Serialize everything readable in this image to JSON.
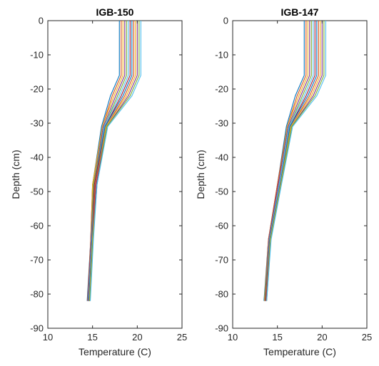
{
  "chart_data": [
    {
      "type": "line",
      "title": "IGB-150",
      "xlabel": "Temperature (C)",
      "ylabel": "Depth (cm)",
      "xlim": [
        10,
        25
      ],
      "ylim": [
        -90,
        0
      ],
      "xticks": [
        "10",
        "15",
        "20",
        "25"
      ],
      "yticks": [
        "0",
        "-10",
        "-20",
        "-30",
        "-40",
        "-50",
        "-60",
        "-70",
        "-80",
        "-90"
      ],
      "depths": [
        0,
        -16,
        -22,
        -31,
        -48,
        -64,
        -82
      ],
      "series": [
        {
          "temps": [
            18.0,
            18.0,
            17.0,
            16.0,
            15.0,
            14.8,
            14.4
          ]
        },
        {
          "temps": [
            18.2,
            18.2,
            17.2,
            16.1,
            15.0,
            14.8,
            14.45
          ]
        },
        {
          "temps": [
            18.4,
            18.4,
            17.4,
            16.1,
            15.0,
            14.85,
            14.5
          ]
        },
        {
          "temps": [
            18.6,
            18.6,
            17.6,
            16.2,
            15.1,
            14.85,
            14.5
          ]
        },
        {
          "temps": [
            18.8,
            18.8,
            17.8,
            16.3,
            15.1,
            14.9,
            14.55
          ]
        },
        {
          "temps": [
            19.0,
            19.0,
            18.0,
            16.3,
            15.2,
            14.9,
            14.55
          ]
        },
        {
          "temps": [
            19.2,
            19.2,
            18.2,
            16.4,
            15.2,
            14.95,
            14.6
          ]
        },
        {
          "temps": [
            19.4,
            19.4,
            18.4,
            16.4,
            15.3,
            14.95,
            14.6
          ]
        },
        {
          "temps": [
            19.6,
            19.6,
            18.6,
            16.5,
            15.3,
            15.0,
            14.65
          ]
        },
        {
          "temps": [
            19.8,
            19.8,
            18.8,
            16.5,
            15.4,
            15.0,
            14.65
          ]
        },
        {
          "temps": [
            20.0,
            20.0,
            19.0,
            16.6,
            15.4,
            15.05,
            14.7
          ]
        },
        {
          "temps": [
            20.2,
            20.2,
            19.2,
            16.6,
            15.5,
            15.05,
            14.7
          ]
        },
        {
          "temps": [
            20.4,
            20.4,
            19.4,
            16.7,
            15.5,
            15.1,
            14.75
          ]
        }
      ]
    },
    {
      "type": "line",
      "title": "IGB-147",
      "xlabel": "Temperature (C)",
      "ylabel": "Depth (cm)",
      "xlim": [
        10,
        25
      ],
      "ylim": [
        -90,
        0
      ],
      "xticks": [
        "10",
        "15",
        "20",
        "25"
      ],
      "yticks": [
        "0",
        "-10",
        "-20",
        "-30",
        "-40",
        "-50",
        "-60",
        "-70",
        "-80",
        "-90"
      ],
      "depths": [
        0,
        -16,
        -22,
        -31,
        -48,
        -64,
        -82
      ],
      "series": [
        {
          "temps": [
            18.0,
            18.0,
            17.0,
            16.0,
            15.0,
            14.0,
            13.5
          ]
        },
        {
          "temps": [
            18.2,
            18.2,
            17.2,
            16.1,
            15.0,
            14.0,
            13.55
          ]
        },
        {
          "temps": [
            18.4,
            18.4,
            17.4,
            16.1,
            15.1,
            14.05,
            13.55
          ]
        },
        {
          "temps": [
            18.6,
            18.6,
            17.6,
            16.2,
            15.1,
            14.05,
            13.6
          ]
        },
        {
          "temps": [
            18.8,
            18.8,
            17.8,
            16.3,
            15.2,
            14.1,
            13.6
          ]
        },
        {
          "temps": [
            19.0,
            19.0,
            18.0,
            16.3,
            15.2,
            14.1,
            13.65
          ]
        },
        {
          "temps": [
            19.2,
            19.2,
            18.2,
            16.4,
            15.3,
            14.15,
            13.65
          ]
        },
        {
          "temps": [
            19.4,
            19.4,
            18.4,
            16.4,
            15.3,
            14.15,
            13.7
          ]
        },
        {
          "temps": [
            19.6,
            19.6,
            18.6,
            16.5,
            15.35,
            14.2,
            13.7
          ]
        },
        {
          "temps": [
            19.8,
            19.8,
            18.8,
            16.5,
            15.35,
            14.2,
            13.75
          ]
        },
        {
          "temps": [
            20.0,
            20.0,
            19.0,
            16.6,
            15.4,
            14.25,
            13.75
          ]
        },
        {
          "temps": [
            20.2,
            20.2,
            19.2,
            16.6,
            15.4,
            14.25,
            13.8
          ]
        },
        {
          "temps": [
            20.4,
            20.4,
            19.4,
            16.7,
            15.45,
            14.3,
            13.8
          ]
        }
      ]
    }
  ],
  "colors": {
    "series": [
      "#0072BD",
      "#D95319",
      "#EDB120",
      "#7E2F8E",
      "#77AC30",
      "#4DBEEE",
      "#A2142F"
    ],
    "axis": "#262626",
    "title": "#000000",
    "background": "#ffffff"
  }
}
